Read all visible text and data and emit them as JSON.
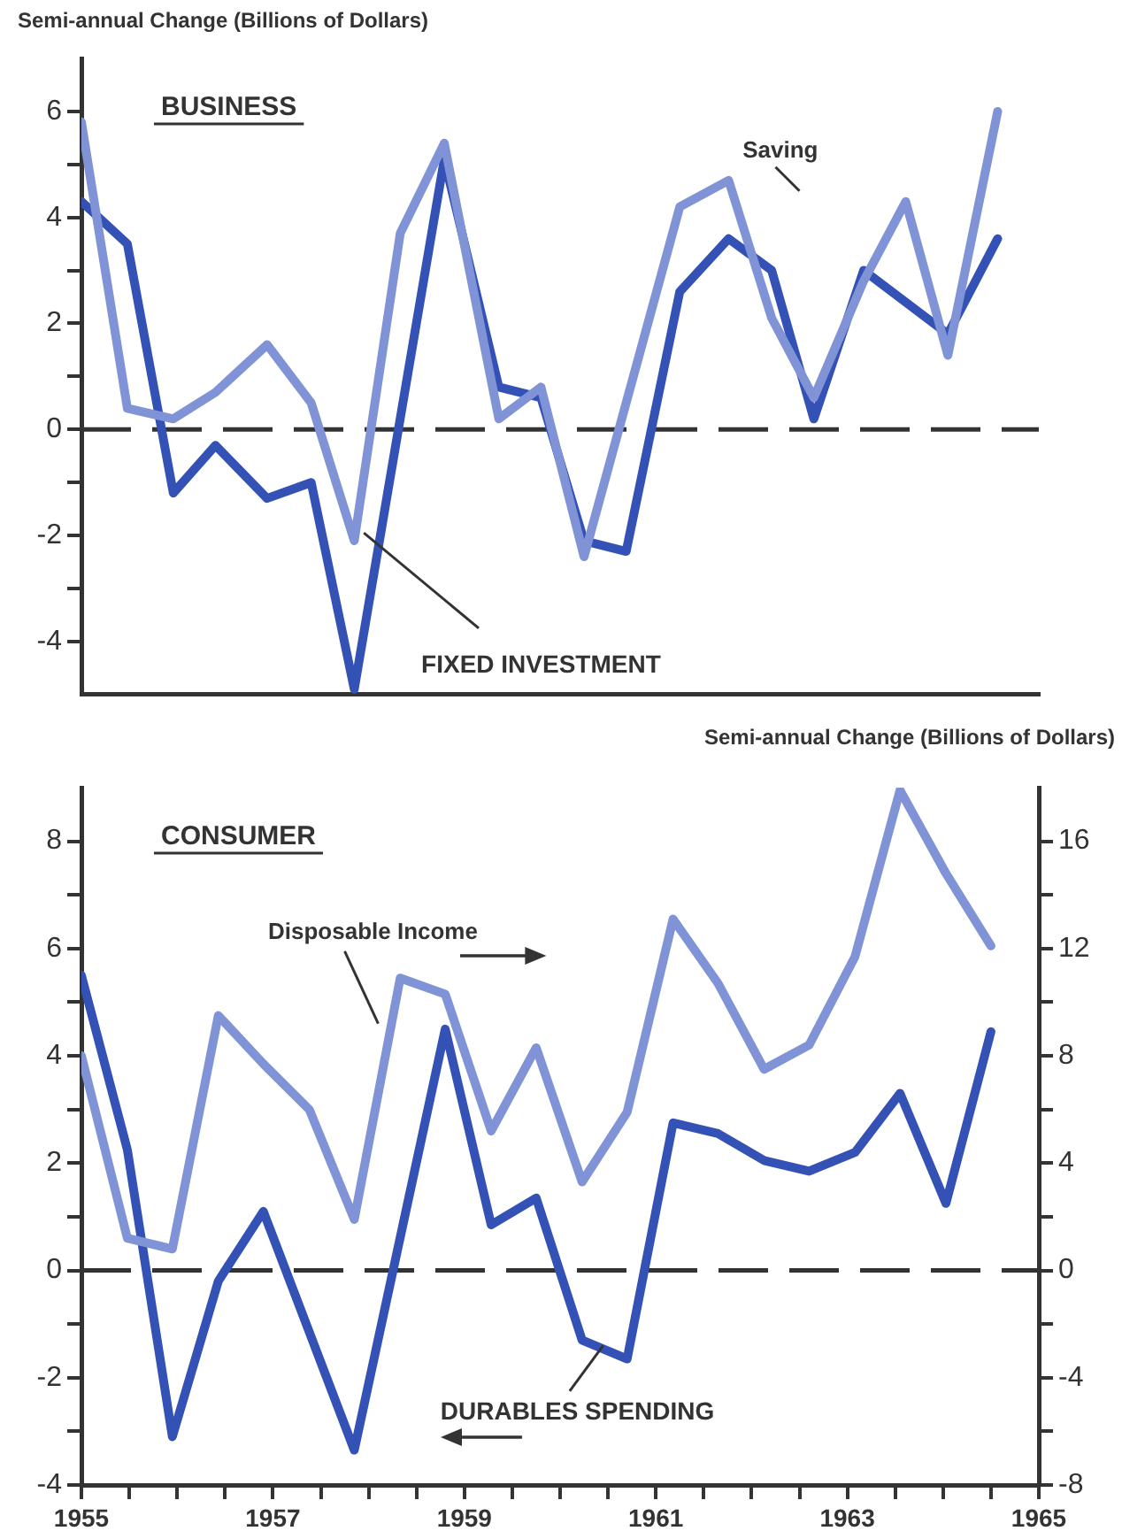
{
  "chart_data": [
    {
      "type": "line",
      "title": "BUSINESS",
      "ylabel": "Semi-annual Change (Billions of Dollars)",
      "xlim": [
        1955,
        1965
      ],
      "ylim": [
        -5,
        7
      ],
      "yticks": [
        -4,
        {
          "value": -3,
          "label": null
        },
        -2,
        {
          "value": -1,
          "label": null
        },
        0,
        {
          "value": 1,
          "label": null
        },
        2,
        {
          "value": 3,
          "label": null
        },
        4,
        {
          "value": 5,
          "label": null
        },
        6
      ],
      "tick_labels": "y",
      "grid": false,
      "legend": false,
      "marker": "none",
      "ref_lines": [
        {
          "axis": "y",
          "value": 0,
          "line_style": "dashed"
        }
      ],
      "series": [
        {
          "name": "Saving",
          "color": "#8093d6",
          "x": [
            1955,
            1955.48,
            1955.96,
            1956.4,
            1956.94,
            1957.4,
            1957.85,
            1958.33,
            1958.79,
            1959.36,
            1959.8,
            1960.25,
            1961.25,
            1961.76,
            1962.21,
            1962.65,
            1963.17,
            1963.61,
            1964.05,
            1964.57
          ],
          "values": [
            5.8,
            0.4,
            0.2,
            0.7,
            1.6,
            0.5,
            -2.1,
            3.7,
            5.4,
            0.2,
            0.8,
            -2.4,
            4.2,
            4.7,
            2.1,
            0.6,
            2.8,
            4.3,
            1.4,
            6.0
          ]
        },
        {
          "name": "FIXED INVESTMENT",
          "color": "#3451b5",
          "x": [
            1955,
            1955.48,
            1955.96,
            1956.4,
            1956.94,
            1957.4,
            1957.85,
            1958.79,
            1959.36,
            1959.8,
            1960.25,
            1960.69,
            1961.25,
            1961.76,
            1962.21,
            1962.65,
            1963.17,
            1964.05,
            1964.57
          ],
          "values": [
            4.3,
            3.5,
            -1.2,
            -0.3,
            -1.3,
            -1.0,
            -4.9,
            5.1,
            0.8,
            0.6,
            -2.1,
            -2.3,
            2.6,
            3.6,
            3.0,
            0.2,
            3.0,
            1.8,
            3.6
          ]
        }
      ]
    },
    {
      "type": "line",
      "title": "CONSUMER",
      "y2label": "Semi-annual Change (Billions of Dollars)",
      "xlim": [
        1955,
        1965
      ],
      "xticks": [
        1955,
        {
          "value": 1955.5,
          "label": null
        },
        {
          "value": 1956,
          "label": null
        },
        {
          "value": 1956.5,
          "label": null
        },
        1957,
        {
          "value": 1957.5,
          "label": null
        },
        {
          "value": 1958,
          "label": null
        },
        {
          "value": 1958.5,
          "label": null
        },
        1959,
        {
          "value": 1959.5,
          "label": null
        },
        {
          "value": 1960,
          "label": null
        },
        {
          "value": 1960.5,
          "label": null
        },
        1961,
        {
          "value": 1961.5,
          "label": null
        },
        {
          "value": 1962,
          "label": null
        },
        {
          "value": 1962.5,
          "label": null
        },
        1963,
        {
          "value": 1963.5,
          "label": null
        },
        {
          "value": 1964,
          "label": null
        },
        {
          "value": 1964.5,
          "label": null
        },
        1965
      ],
      "ylim": [
        -4,
        9
      ],
      "yticks": [
        -4,
        {
          "value": -3,
          "label": null
        },
        -2,
        {
          "value": -1,
          "label": null
        },
        0,
        {
          "value": 1,
          "label": null
        },
        2,
        {
          "value": 3,
          "label": null
        },
        4,
        {
          "value": 5,
          "label": null
        },
        6,
        {
          "value": 7,
          "label": null
        },
        8
      ],
      "y2lim": [
        -8,
        18
      ],
      "y2ticks": [
        -8,
        {
          "value": -6,
          "label": null
        },
        -4,
        {
          "value": -2,
          "label": null
        },
        0,
        {
          "value": 2,
          "label": null
        },
        4,
        {
          "value": 6,
          "label": null
        },
        8,
        {
          "value": 10,
          "label": null
        },
        12,
        {
          "value": 14,
          "label": null
        },
        16
      ],
      "grid": false,
      "legend": false,
      "marker": "none",
      "ref_lines": [
        {
          "axis": "y",
          "value": 0,
          "line_style": "dashed"
        }
      ],
      "series": [
        {
          "name": "Disposable Income",
          "color": "#8093d6",
          "axis": "y2",
          "x": [
            1955,
            1955.48,
            1955.95,
            1956.43,
            1956.9,
            1957.38,
            1957.85,
            1958.33,
            1958.8,
            1959.28,
            1959.75,
            1960.23,
            1960.7,
            1961.18,
            1961.65,
            1962.13,
            1962.6,
            1963.08,
            1963.55,
            1964.03,
            1964.5
          ],
          "values": [
            8.0,
            1.2,
            0.8,
            9.5,
            7.7,
            6.0,
            1.9,
            10.9,
            10.3,
            5.2,
            8.3,
            3.3,
            5.9,
            13.1,
            10.7,
            7.5,
            8.4,
            11.7,
            17.9,
            14.8,
            12.1
          ]
        },
        {
          "name": "DURABLES SPENDING",
          "color": "#3451b5",
          "x": [
            1955,
            1955.48,
            1955.95,
            1956.43,
            1956.9,
            1957.85,
            1958.8,
            1959.28,
            1959.75,
            1960.23,
            1960.7,
            1961.18,
            1961.65,
            1962.13,
            1962.6,
            1963.08,
            1963.55,
            1964.03,
            1964.5
          ],
          "values": [
            5.5,
            2.25,
            -3.1,
            -0.2,
            1.1,
            -3.35,
            4.5,
            0.85,
            1.35,
            -1.3,
            -1.65,
            2.75,
            2.55,
            2.05,
            1.85,
            2.2,
            3.3,
            1.25,
            4.45
          ]
        }
      ]
    }
  ]
}
